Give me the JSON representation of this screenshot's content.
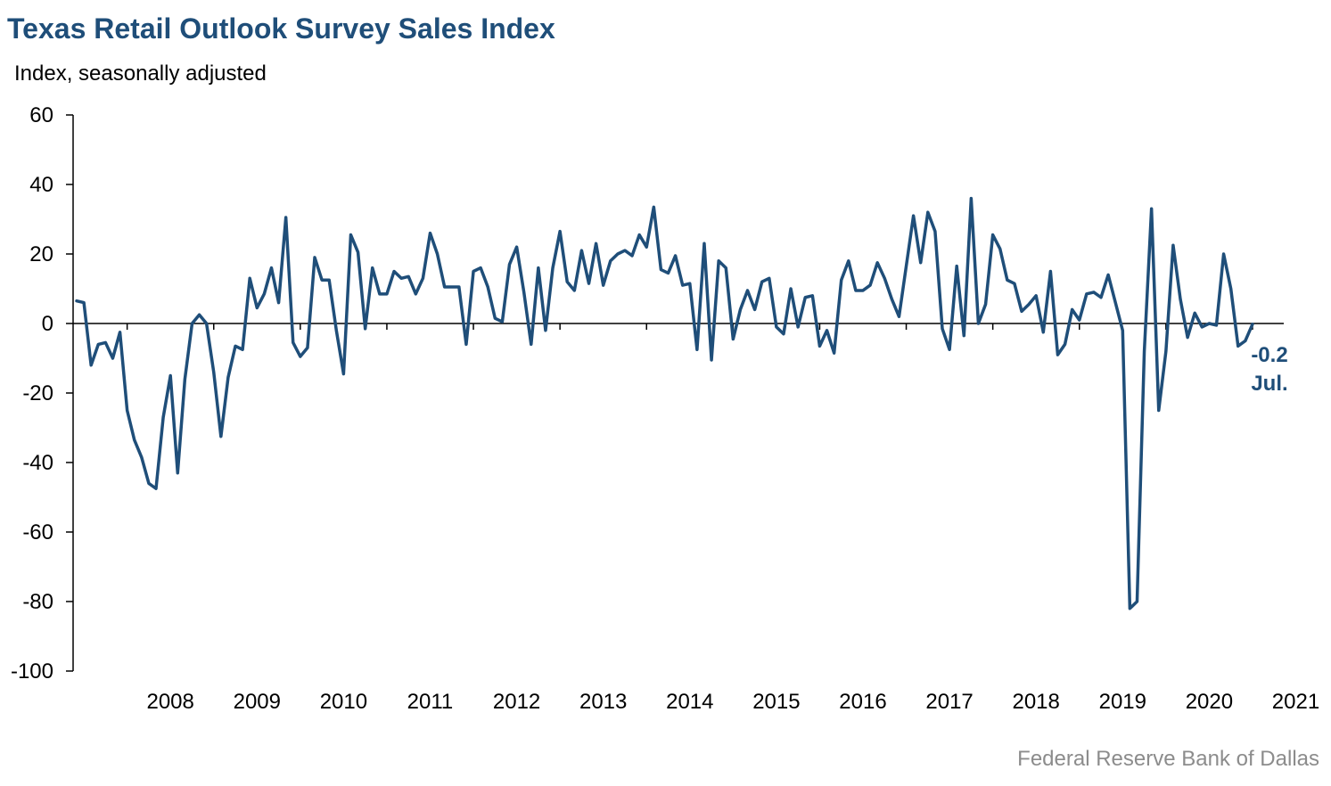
{
  "title": "Texas Retail Outlook Survey Sales Index",
  "subtitle": "Index, seasonally adjusted",
  "source": "Federal Reserve Bank of Dallas",
  "colors": {
    "line": "#1f4e79",
    "title": "#1f4e79",
    "axis": "#000000",
    "source": "#8c8c8c"
  },
  "chart_data": {
    "type": "line",
    "title": "Texas Retail Outlook Survey Sales Index",
    "ylabel": "Index, seasonally adjusted",
    "ylim": [
      -100,
      60
    ],
    "yticks": [
      60,
      40,
      20,
      0,
      -20,
      -40,
      -60,
      -80,
      -100
    ],
    "x_start": "2007-06",
    "x_end": "2021-07",
    "xtick_labels": [
      "2008",
      "2009",
      "2010",
      "2011",
      "2012",
      "2013",
      "2014",
      "2015",
      "2016",
      "2017",
      "2018",
      "2019",
      "2020",
      "2021"
    ],
    "grid": false,
    "legend": "none",
    "annotation": {
      "value": "-0.2",
      "label": "Jul."
    },
    "series": [
      {
        "values": [
          6.5,
          6,
          -12,
          -6,
          -5.5,
          -10,
          -2.5,
          -25,
          -33.5,
          -38.5,
          -46,
          -47.5,
          -27,
          -15,
          -43,
          -16,
          0,
          2.5,
          0,
          -14,
          -32.5,
          -15.5,
          -6.5,
          -7.5,
          13,
          4.5,
          8.5,
          16,
          6,
          30.5,
          -5.5,
          -9.5,
          -7,
          19,
          12.5,
          12.5,
          -2,
          -14.5,
          25.5,
          20.5,
          -1.5,
          16,
          8.5,
          8.5,
          15,
          13,
          13.5,
          8.5,
          13,
          26,
          20,
          10.5,
          10.5,
          10.5,
          -6,
          15,
          16,
          10.5,
          1.5,
          0.5,
          17,
          22,
          9,
          -6,
          16,
          -2,
          16,
          26.5,
          12,
          9.5,
          21,
          11.5,
          23,
          11,
          18,
          20,
          21,
          19.5,
          25.5,
          22,
          33.5,
          15.5,
          14.5,
          19.5,
          11,
          11.5,
          -7.5,
          23,
          -10.5,
          18,
          16,
          -4.5,
          4,
          9.5,
          4,
          12,
          13,
          -1,
          -3,
          10,
          -1,
          7.5,
          8,
          -6.5,
          -2,
          -8.5,
          12.5,
          18,
          9.5,
          9.5,
          11,
          17.5,
          13,
          7,
          2,
          16.5,
          31,
          17.5,
          32,
          26.5,
          -1.5,
          -7.5,
          16.5,
          -3.5,
          36,
          0,
          5.5,
          25.5,
          21.5,
          12.5,
          11.5,
          3.5,
          5.5,
          8,
          -2.5,
          15,
          -9,
          -6,
          4,
          1,
          8.5,
          9,
          7.5,
          14,
          6,
          -2,
          -82,
          -80,
          -8,
          33,
          -25,
          -8,
          22.5,
          7,
          -4,
          3,
          -1,
          0,
          -0.5,
          20,
          10,
          -6.5,
          -5,
          -0.2
        ]
      }
    ]
  }
}
